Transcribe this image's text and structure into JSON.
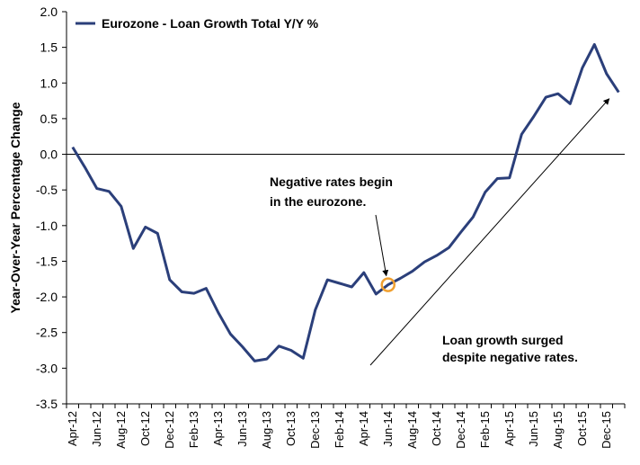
{
  "chart_data": {
    "type": "line",
    "ylabel": "Year-Over-Year Percentage Change",
    "ylim": [
      -3.5,
      2.0
    ],
    "yticks": [
      "2.0",
      "1.5",
      "1.0",
      "0.5",
      "0.0",
      "-0.5",
      "-1.0",
      "-1.5",
      "-2.0",
      "-2.5",
      "-3.0",
      "-3.5"
    ],
    "xtick_labels": [
      "Apr-12",
      "Jun-12",
      "Aug-12",
      "Oct-12",
      "Dec-12",
      "Feb-13",
      "Apr-13",
      "Jun-13",
      "Aug-13",
      "Oct-13",
      "Dec-13",
      "Feb-14",
      "Apr-14",
      "Jun-14",
      "Aug-14",
      "Oct-14",
      "Dec-14",
      "Feb-15",
      "Apr-15",
      "Jun-15",
      "Aug-15",
      "Oct-15",
      "Dec-15"
    ],
    "legend_position": "top-left",
    "grid": false,
    "series": [
      {
        "name": "Eurozone - Loan Growth Total Y/Y %",
        "color": "#2b3f7a",
        "x": [
          "Apr-12",
          "May-12",
          "Jun-12",
          "Jul-12",
          "Aug-12",
          "Sep-12",
          "Oct-12",
          "Nov-12",
          "Dec-12",
          "Jan-13",
          "Feb-13",
          "Mar-13",
          "Apr-13",
          "May-13",
          "Jun-13",
          "Jul-13",
          "Aug-13",
          "Sep-13",
          "Oct-13",
          "Nov-13",
          "Dec-13",
          "Jan-14",
          "Feb-14",
          "Mar-14",
          "Apr-14",
          "May-14",
          "Jun-14",
          "Jul-14",
          "Aug-14",
          "Sep-14",
          "Oct-14",
          "Nov-14",
          "Dec-14",
          "Jan-15",
          "Feb-15",
          "Mar-15",
          "Apr-15",
          "May-15",
          "Jun-15",
          "Jul-15",
          "Aug-15",
          "Sep-15",
          "Oct-15",
          "Nov-15",
          "Dec-15",
          "Jan-16"
        ],
        "values": [
          0.1,
          -0.18,
          -0.48,
          -0.52,
          -0.73,
          -1.32,
          -1.02,
          -1.11,
          -1.76,
          -1.93,
          -1.95,
          -1.88,
          -2.22,
          -2.52,
          -2.7,
          -2.9,
          -2.87,
          -2.69,
          -2.75,
          -2.86,
          -2.18,
          -1.76,
          -1.81,
          -1.86,
          -1.66,
          -1.96,
          -1.83,
          -1.74,
          -1.64,
          -1.51,
          -1.42,
          -1.31,
          -1.09,
          -0.88,
          -0.53,
          -0.34,
          -0.33,
          0.28,
          0.53,
          0.8,
          0.85,
          0.71,
          1.21,
          1.54,
          1.13,
          0.87
        ]
      }
    ],
    "annotations": [
      {
        "lines": [
          "Negative rates begin",
          "in the eurozone."
        ],
        "points_to": "Jun-14"
      },
      {
        "lines": [
          "Loan growth surged",
          "despite negative rates."
        ]
      }
    ]
  }
}
